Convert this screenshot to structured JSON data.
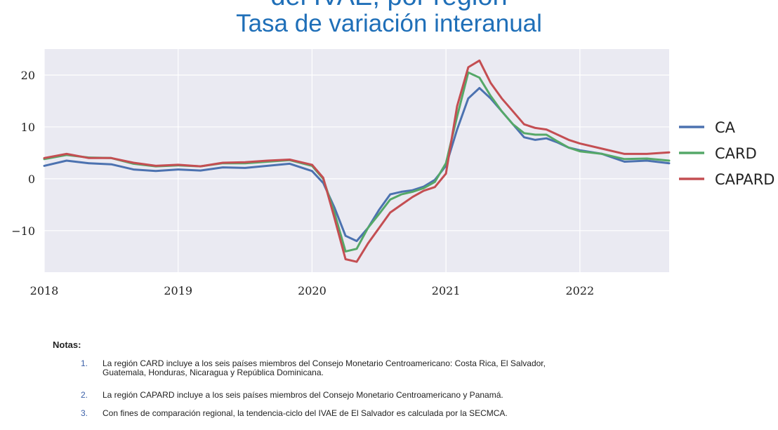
{
  "title": {
    "top_partial": "del IVAE, por región",
    "main": "Tasa de variación interanual"
  },
  "chart_data": {
    "type": "line",
    "xlabel": "",
    "ylabel": "",
    "xlim": [
      "2018-01",
      "2022-09"
    ],
    "ylim": [
      -18,
      25
    ],
    "xticks": [
      {
        "date": "2018-01",
        "label": "2018"
      },
      {
        "date": "2019-01",
        "label": "2019"
      },
      {
        "date": "2020-01",
        "label": "2020"
      },
      {
        "date": "2021-01",
        "label": "2021"
      },
      {
        "date": "2022-01",
        "label": "2022"
      }
    ],
    "yticks": [
      {
        "value": 20,
        "label": "20"
      },
      {
        "value": 10,
        "label": "10"
      },
      {
        "value": 0,
        "label": "0"
      },
      {
        "value": -10,
        "label": "−10"
      }
    ],
    "grid": true,
    "legend_position": "right",
    "dates": [
      "2018-01",
      "2018-03",
      "2018-05",
      "2018-07",
      "2018-09",
      "2018-11",
      "2019-01",
      "2019-03",
      "2019-05",
      "2019-07",
      "2019-09",
      "2019-11",
      "2020-01",
      "2020-02",
      "2020-03",
      "2020-04",
      "2020-05",
      "2020-06",
      "2020-07",
      "2020-08",
      "2020-09",
      "2020-10",
      "2020-11",
      "2020-12",
      "2021-01",
      "2021-02",
      "2021-03",
      "2021-04",
      "2021-05",
      "2021-06",
      "2021-07",
      "2021-08",
      "2021-09",
      "2021-10",
      "2021-11",
      "2021-12",
      "2022-01",
      "2022-03",
      "2022-05",
      "2022-07",
      "2022-09"
    ],
    "series": [
      {
        "name": "CA",
        "color": "#4c72b0",
        "values": [
          2.5,
          3.5,
          3.0,
          2.8,
          1.8,
          1.5,
          1.8,
          1.6,
          2.2,
          2.1,
          2.5,
          2.9,
          1.5,
          -0.8,
          -5.5,
          -11.0,
          -12.0,
          -9.5,
          -6.0,
          -3.0,
          -2.5,
          -2.2,
          -1.5,
          -0.2,
          2.5,
          9.5,
          15.5,
          17.5,
          15.5,
          13.0,
          10.5,
          8.0,
          7.5,
          7.8,
          7.0,
          6.0,
          5.5,
          4.8,
          3.3,
          3.5,
          3.0
        ]
      },
      {
        "name": "CARD",
        "color": "#55a868",
        "values": [
          3.8,
          4.6,
          4.1,
          4.0,
          2.9,
          2.4,
          2.6,
          2.4,
          3.0,
          3.0,
          3.3,
          3.6,
          2.5,
          0.0,
          -6.5,
          -14.0,
          -13.5,
          -9.5,
          -6.8,
          -4.0,
          -3.0,
          -2.5,
          -1.8,
          -0.6,
          3.0,
          12.0,
          20.5,
          19.5,
          16.0,
          13.0,
          10.5,
          8.8,
          8.5,
          8.5,
          7.2,
          6.0,
          5.3,
          4.8,
          3.8,
          3.9,
          3.5
        ]
      },
      {
        "name": "CAPARD",
        "color": "#c44e52",
        "values": [
          4.0,
          4.8,
          4.0,
          4.0,
          3.1,
          2.5,
          2.7,
          2.4,
          3.1,
          3.2,
          3.5,
          3.7,
          2.7,
          0.2,
          -7.5,
          -15.5,
          -16.0,
          -12.5,
          -9.5,
          -6.5,
          -5.0,
          -3.5,
          -2.3,
          -1.6,
          1.0,
          14.0,
          21.5,
          22.8,
          18.5,
          15.5,
          13.0,
          10.5,
          9.8,
          9.5,
          8.5,
          7.5,
          6.8,
          5.8,
          4.8,
          4.8,
          5.1
        ]
      }
    ]
  },
  "notes": {
    "heading": "Notas:",
    "items": [
      {
        "num": "1.",
        "line1": "La región CARD incluye a los seis países miembros del Consejo Monetario Centroamericano: Costa Rica, El Salvador,",
        "line2": "Guatemala, Honduras, Nicaragua y República Dominicana."
      },
      {
        "num": "2.",
        "line1": "La región CAPARD incluye a los seis países miembros del Consejo Monetario Centroamericano y Panamá.",
        "line2": ""
      },
      {
        "num": "3.",
        "line1": "Con fines de comparación regional, la tendencia-ciclo del IVAE de El Salvador es calculada por la SECMCA.",
        "line2": ""
      }
    ]
  }
}
